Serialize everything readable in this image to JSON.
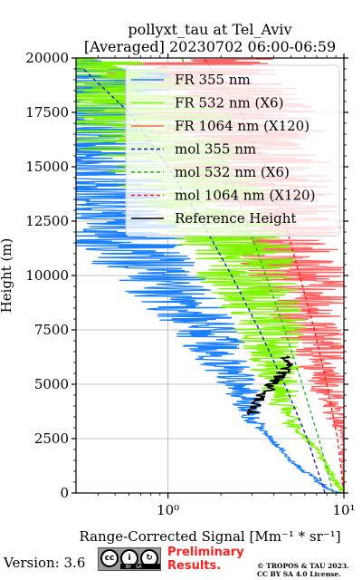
{
  "chart_data": {
    "type": "line",
    "title_line1": "pollyxt_tau at Tel_Aviv",
    "title_line2": "[Averaged] 20230702 06:00-06:59",
    "xlabel": "Range-Corrected Signal [Mm⁻¹ * sr⁻¹]",
    "ylabel": "Height (m)",
    "xscale": "log",
    "xlim": [
      0.3,
      10
    ],
    "ylim": [
      0,
      20000
    ],
    "x_tick_labels": [
      "10⁰",
      "10¹"
    ],
    "y_ticks": [
      0,
      2500,
      5000,
      7500,
      10000,
      12500,
      15000,
      17500,
      20000
    ],
    "grid": true,
    "legend_position": "top-right",
    "series": [
      {
        "name": "FR 355 nm",
        "color": "#1a7fff",
        "style": "solid",
        "noisy": true,
        "points": [
          [
            10,
            0
          ],
          [
            8,
            200
          ],
          [
            5,
            1500
          ],
          [
            3.2,
            3200
          ],
          [
            2.5,
            5000
          ],
          [
            1.6,
            7500
          ],
          [
            1.0,
            9500
          ],
          [
            0.6,
            11500
          ],
          [
            0.4,
            13500
          ],
          [
            0.3,
            16000
          ],
          [
            0.3,
            20000
          ]
        ]
      },
      {
        "name": "FR 532 nm (X6)",
        "color": "#7ff500",
        "style": "solid",
        "noisy": true,
        "points": [
          [
            10,
            0
          ],
          [
            9,
            500
          ],
          [
            7,
            2000
          ],
          [
            5,
            3200
          ],
          [
            4.2,
            5000
          ],
          [
            3.8,
            7500
          ],
          [
            3.0,
            9500
          ],
          [
            2.4,
            11500
          ],
          [
            1.6,
            13500
          ],
          [
            0.9,
            16000
          ],
          [
            0.5,
            18500
          ],
          [
            0.35,
            20000
          ]
        ]
      },
      {
        "name": "FR 1064 nm (X120)",
        "color": "#ff6464",
        "style": "solid",
        "noisy": true,
        "points": [
          [
            10,
            0
          ],
          [
            10,
            2500
          ],
          [
            8,
            5000
          ],
          [
            6.5,
            7500
          ],
          [
            5.5,
            10000
          ],
          [
            4.2,
            12500
          ],
          [
            3,
            15000
          ],
          [
            2,
            17500
          ],
          [
            1.2,
            20000
          ]
        ]
      },
      {
        "name": "mol 355 nm",
        "color": "#1010e0",
        "style": "dashed",
        "noisy": false,
        "points": [
          [
            7.8,
            0
          ],
          [
            6.2,
            2500
          ],
          [
            4.6,
            5000
          ],
          [
            3.3,
            7500
          ],
          [
            2.3,
            10000
          ],
          [
            1.55,
            12500
          ],
          [
            1.0,
            15000
          ],
          [
            0.6,
            17500
          ],
          [
            0.33,
            19500
          ]
        ]
      },
      {
        "name": "mol 532 nm (X6)",
        "color": "#1fb01f",
        "style": "dashed",
        "noisy": false,
        "points": [
          [
            8.7,
            0
          ],
          [
            7.2,
            2500
          ],
          [
            5.8,
            5000
          ],
          [
            4.6,
            7500
          ],
          [
            3.6,
            10000
          ],
          [
            2.8,
            12500
          ],
          [
            2.1,
            15000
          ],
          [
            1.6,
            17500
          ],
          [
            1.2,
            20000
          ]
        ]
      },
      {
        "name": "mol 1064 nm (X120)",
        "color": "#ff1010",
        "style": "dashed",
        "noisy": false,
        "points": [
          [
            10,
            0
          ],
          [
            9.2,
            2500
          ],
          [
            8.0,
            5000
          ],
          [
            6.8,
            7500
          ],
          [
            5.6,
            10000
          ],
          [
            4.6,
            12500
          ],
          [
            3.6,
            15000
          ],
          [
            2.6,
            17500
          ],
          [
            1.6,
            20000
          ]
        ]
      },
      {
        "name": "Reference Height",
        "color": "#000000",
        "style": "solid",
        "noisy": true,
        "points": [
          [
            3.0,
            3600
          ],
          [
            3.3,
            4300
          ],
          [
            3.9,
            5000
          ],
          [
            4.6,
            5600
          ],
          [
            4.8,
            6300
          ]
        ]
      }
    ]
  },
  "footer": {
    "version": "Version: 3.6",
    "license_badge": "cc-by-sa-badge",
    "preliminary_line1": "Preliminary",
    "preliminary_line2": "Results.",
    "copyright_line1": "© TROPOS & TAU 2023.",
    "copyright_line2": "CC BY SA 4.0 License."
  }
}
